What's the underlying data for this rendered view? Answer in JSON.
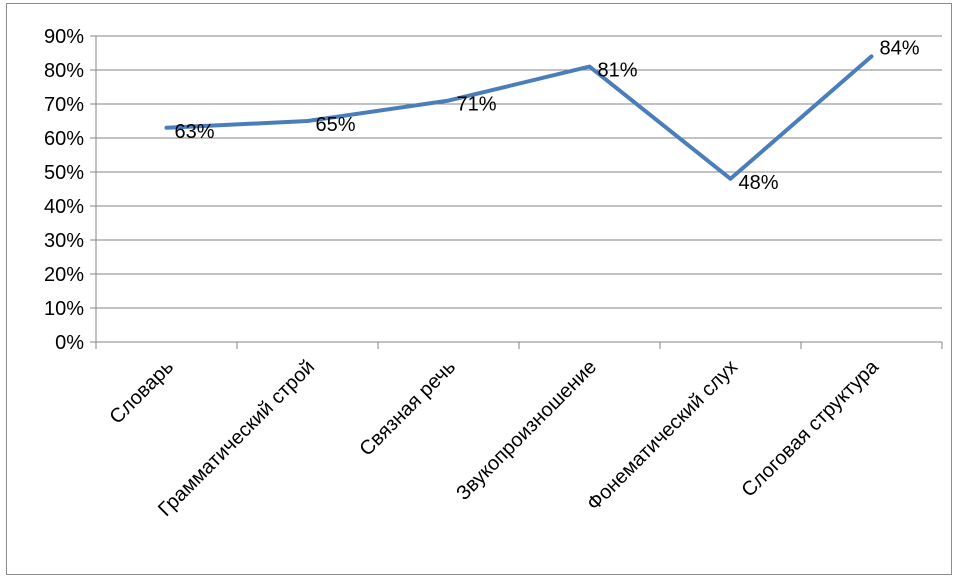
{
  "chart_data": {
    "type": "line",
    "categories": [
      "Словарь",
      "Грамматический строй",
      "Связная речь",
      "Звукопроизношение",
      "Фонематический слух",
      "Слоговая структура"
    ],
    "values": [
      63,
      65,
      71,
      81,
      48,
      84
    ],
    "data_labels": [
      "63%",
      "65%",
      "71%",
      "81%",
      "48%",
      "84%"
    ],
    "y_ticks": [
      "0%",
      "10%",
      "20%",
      "30%",
      "40%",
      "50%",
      "60%",
      "70%",
      "80%",
      "90%"
    ],
    "ylim": [
      0,
      90
    ],
    "grid": true,
    "legend": "none",
    "title": "",
    "xlabel": "",
    "ylabel": "",
    "colors": {
      "line": "#4a7ebb",
      "grid": "#868686",
      "axis": "#868686",
      "frame": "#8c8c8c"
    }
  }
}
